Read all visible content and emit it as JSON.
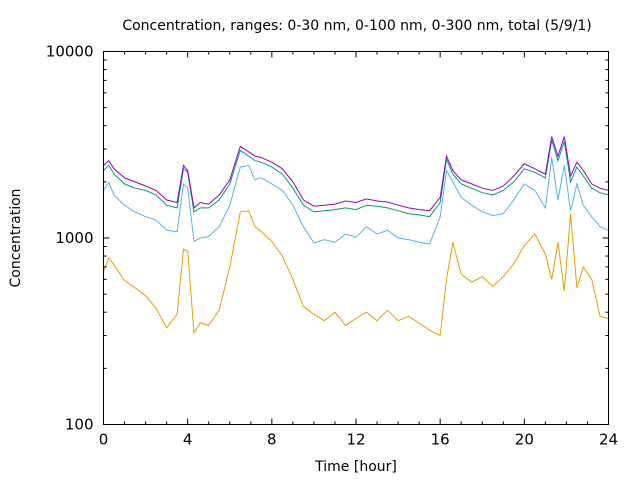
{
  "chart_data": {
    "type": "line",
    "title": "Concentration, ranges: 0-30 nm, 0-100 nm, 0-300 nm, total (5/9/1)",
    "xlabel": "Time [hour]",
    "ylabel": "Concentration",
    "xlim": [
      0,
      24
    ],
    "ylim": [
      100,
      10000
    ],
    "yscale": "log",
    "grid": false,
    "legend": "none",
    "x_ticks": [
      0,
      4,
      8,
      12,
      16,
      20,
      24
    ],
    "x_tick_labels": [
      "0",
      "4",
      "8",
      "12",
      "16",
      "20",
      "24"
    ],
    "y_ticks": [
      100,
      1000,
      10000
    ],
    "y_tick_labels": [
      "100",
      "1000",
      "10000"
    ],
    "x": [
      0,
      0.25,
      0.5,
      1,
      1.5,
      2,
      2.5,
      3,
      3.5,
      3.8,
      4,
      4.3,
      4.6,
      5,
      5.5,
      6,
      6.5,
      6.9,
      7.2,
      7.5,
      8,
      8.5,
      9,
      9.5,
      10,
      10.5,
      11,
      11.5,
      12,
      12.5,
      13,
      13.5,
      14,
      14.5,
      15,
      15.5,
      16,
      16.3,
      16.6,
      17,
      17.5,
      18,
      18.5,
      19,
      19.5,
      20,
      20.5,
      21,
      21.3,
      21.6,
      21.9,
      22.2,
      22.5,
      22.8,
      23.2,
      23.6,
      24
    ],
    "series": [
      {
        "name": "0-30 nm",
        "color": "#e69f00",
        "values": [
          660,
          780,
          720,
          590,
          540,
          490,
          420,
          330,
          390,
          870,
          850,
          310,
          350,
          340,
          410,
          700,
          1380,
          1400,
          1150,
          1080,
          960,
          800,
          600,
          430,
          390,
          360,
          400,
          340,
          370,
          400,
          360,
          410,
          360,
          380,
          350,
          320,
          300,
          600,
          950,
          640,
          580,
          620,
          550,
          620,
          730,
          910,
          1050,
          820,
          600,
          950,
          520,
          1350,
          540,
          700,
          600,
          380,
          370
        ]
      },
      {
        "name": "0-100 nm",
        "color": "#56b4e9",
        "values": [
          1800,
          1980,
          1700,
          1500,
          1380,
          1300,
          1250,
          1100,
          1080,
          1950,
          1850,
          960,
          1000,
          1020,
          1150,
          1500,
          2400,
          2450,
          2050,
          2100,
          1950,
          1800,
          1500,
          1150,
          940,
          980,
          950,
          1050,
          1010,
          1150,
          1050,
          1100,
          1000,
          980,
          950,
          930,
          1300,
          2300,
          2000,
          1650,
          1500,
          1380,
          1320,
          1350,
          1600,
          1950,
          1800,
          1450,
          2700,
          1600,
          2450,
          1400,
          1950,
          1500,
          1300,
          1150,
          1100
        ]
      },
      {
        "name": "0-300 nm",
        "color": "#009e73",
        "values": [
          2300,
          2450,
          2200,
          1950,
          1850,
          1800,
          1700,
          1500,
          1450,
          2350,
          2250,
          1380,
          1450,
          1450,
          1600,
          1950,
          2950,
          2750,
          2600,
          2550,
          2400,
          2200,
          1850,
          1500,
          1380,
          1400,
          1420,
          1450,
          1420,
          1500,
          1480,
          1450,
          1400,
          1350,
          1330,
          1300,
          1550,
          2650,
          2200,
          1950,
          1850,
          1750,
          1700,
          1800,
          2000,
          2350,
          2250,
          2100,
          3350,
          2600,
          3300,
          2000,
          2400,
          2150,
          1850,
          1750,
          1700
        ]
      },
      {
        "name": "total",
        "color": "#9400d3",
        "values": [
          2450,
          2600,
          2350,
          2100,
          2000,
          1900,
          1800,
          1600,
          1550,
          2450,
          2300,
          1450,
          1550,
          1520,
          1700,
          2050,
          3100,
          2900,
          2750,
          2700,
          2550,
          2350,
          2000,
          1600,
          1480,
          1500,
          1520,
          1580,
          1550,
          1620,
          1580,
          1560,
          1500,
          1450,
          1420,
          1400,
          1650,
          2750,
          2300,
          2050,
          1950,
          1850,
          1800,
          1900,
          2150,
          2500,
          2350,
          2200,
          3500,
          2750,
          3500,
          2150,
          2550,
          2300,
          1950,
          1850,
          1800
        ]
      }
    ]
  }
}
